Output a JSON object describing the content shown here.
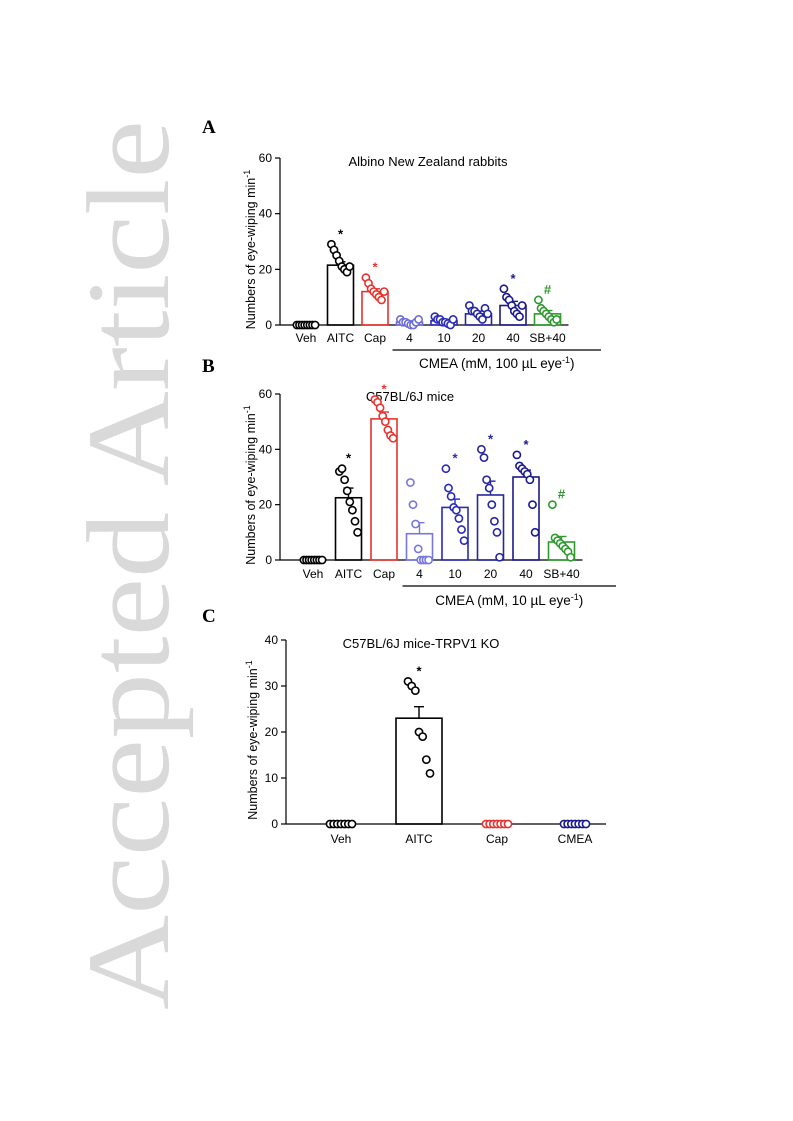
{
  "watermark": {
    "text": "Accepted Article",
    "color": "#d9d9d9"
  },
  "chart_data": [
    {
      "panel": "A",
      "type": "bar",
      "title": "Albino New Zealand rabbits",
      "ylabel": "Numbers of eye-wiping min",
      "ylabel_superscript": "-1",
      "ylim": [
        0,
        60
      ],
      "yticks": [
        "0",
        "20",
        "40",
        "60"
      ],
      "categories": [
        "Veh",
        "AITC",
        "Cap",
        "4",
        "10",
        "20",
        "40",
        "SB+40"
      ],
      "group_label": "CMEA (mM, 100 µL eye",
      "group_label_superscript": "-1",
      "group_label_close": ")",
      "group_range": [
        3,
        7
      ],
      "values": [
        0,
        21.5,
        12,
        1,
        1.5,
        4,
        7,
        4
      ],
      "sem": [
        0,
        1.2,
        1,
        0.5,
        0.5,
        1,
        1.5,
        1.2
      ],
      "points": [
        [
          0,
          0,
          0,
          0,
          0,
          0,
          0,
          0
        ],
        [
          29,
          27,
          25,
          23,
          21,
          20,
          19,
          21
        ],
        [
          17,
          15,
          13,
          12,
          11,
          10,
          9,
          12
        ],
        [
          2,
          1,
          1,
          0.5,
          0,
          0,
          1,
          2
        ],
        [
          3,
          2,
          2,
          1,
          1,
          0.5,
          0,
          2
        ],
        [
          7,
          5,
          5,
          4,
          3,
          2,
          6,
          4
        ],
        [
          13,
          10,
          9,
          7,
          5,
          4,
          3,
          7
        ],
        [
          9,
          6,
          5,
          4,
          3,
          2,
          1,
          2
        ]
      ],
      "colors": [
        "#000000",
        "#000000",
        "#e8322e",
        "#6c6cd9",
        "#2a2ab8",
        "#26269e",
        "#1a1a8c",
        "#2e9a2e"
      ],
      "significance": [
        "",
        "*",
        "*",
        "",
        "",
        "",
        "*",
        "#"
      ],
      "sig_colors": [
        "#000000",
        "#000000",
        "#e8322e",
        "#000000",
        "#000000",
        "#000000",
        "#1a1a8c",
        "#2e9a2e"
      ]
    },
    {
      "panel": "B",
      "type": "bar",
      "title": "C57BL/6J mice",
      "ylabel": "Numbers of eye-wiping min",
      "ylabel_superscript": "-1",
      "ylim": [
        0,
        60
      ],
      "yticks": [
        "0",
        "20",
        "40",
        "60"
      ],
      "categories": [
        "Veh",
        "AITC",
        "Cap",
        "4",
        "10",
        "20",
        "40",
        "SB+40"
      ],
      "group_label": "CMEA (mM, 10 µL eye",
      "group_label_superscript": "-1",
      "group_label_close": ")",
      "group_range": [
        3,
        7
      ],
      "values": [
        0,
        22.5,
        51,
        9.5,
        19,
        23.5,
        30,
        6.5
      ],
      "sem": [
        0,
        3.5,
        2.5,
        4,
        3,
        5,
        2.5,
        2
      ],
      "points": [
        [
          0,
          0,
          0,
          0,
          0,
          0,
          0,
          0
        ],
        [
          32,
          33,
          29,
          25,
          21,
          18,
          14,
          10
        ],
        [
          58,
          57,
          55,
          52,
          50,
          47,
          45,
          44
        ],
        [
          28,
          20,
          13,
          4,
          0,
          0,
          0,
          0
        ],
        [
          33,
          26,
          23,
          19,
          18,
          15,
          11,
          7
        ],
        [
          40,
          37,
          29,
          26,
          20,
          14,
          10,
          1
        ],
        [
          38,
          34,
          33,
          32,
          31,
          29,
          20,
          10
        ],
        [
          20,
          8,
          7,
          6,
          5,
          4,
          3,
          1
        ]
      ],
      "colors": [
        "#000000",
        "#000000",
        "#e8322e",
        "#7777dd",
        "#2a2ab8",
        "#26269e",
        "#1a1a8c",
        "#2e9a2e"
      ],
      "significance": [
        "",
        "*",
        "*",
        "",
        "*",
        "*",
        "*",
        "#"
      ],
      "sig_colors": [
        "#000000",
        "#000000",
        "#e8322e",
        "#000000",
        "#2a2ab8",
        "#26269e",
        "#1a1a8c",
        "#2e9a2e"
      ]
    },
    {
      "panel": "C",
      "type": "bar",
      "title": "C57BL/6J mice-TRPV1 KO",
      "ylabel": "Numbers of eye-wiping min",
      "ylabel_superscript": "-1",
      "ylim": [
        0,
        40
      ],
      "yticks": [
        "0",
        "10",
        "20",
        "30",
        "40"
      ],
      "categories": [
        "Veh",
        "AITC",
        "Cap",
        "CMEA"
      ],
      "values": [
        0,
        23,
        0,
        0
      ],
      "sem": [
        0,
        2.5,
        0,
        0
      ],
      "points": [
        [
          0,
          0,
          0,
          0,
          0,
          0,
          0
        ],
        [
          31,
          30,
          29,
          20,
          19,
          14,
          11
        ],
        [
          0,
          0,
          0,
          0,
          0,
          0,
          0
        ],
        [
          0,
          0,
          0,
          0,
          0,
          0,
          0
        ]
      ],
      "colors": [
        "#000000",
        "#000000",
        "#e8322e",
        "#1a1a8c"
      ],
      "significance": [
        "",
        "*",
        "",
        ""
      ],
      "sig_colors": [
        "#000000",
        "#000000",
        "#000000",
        "#000000"
      ]
    }
  ]
}
